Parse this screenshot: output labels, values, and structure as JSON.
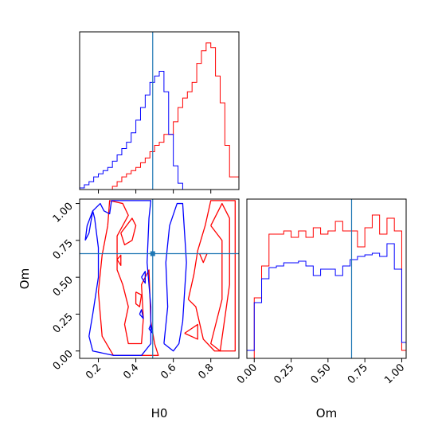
{
  "colors": {
    "series_red": "#ff0000",
    "series_blue": "#0000ff",
    "truth": "#1f77b4",
    "frame": "#000000",
    "background": "#ffffff"
  },
  "chart_data": [
    {
      "type": "histogram",
      "panel": "H0 marginal (top-left)",
      "x_range": [
        0.1,
        0.95
      ],
      "bins": [
        0.1,
        0.125,
        0.15,
        0.175,
        0.2,
        0.225,
        0.25,
        0.275,
        0.3,
        0.325,
        0.35,
        0.375,
        0.4,
        0.425,
        0.45,
        0.475,
        0.5,
        0.525,
        0.55,
        0.575,
        0.6,
        0.625,
        0.65,
        0.675,
        0.7,
        0.725,
        0.75,
        0.775,
        0.8,
        0.825,
        0.85,
        0.875,
        0.9,
        0.925,
        0.95
      ],
      "y_ticks_shown": false,
      "truth_value": 0.49,
      "series": [
        {
          "color": "#ff0000",
          "counts": [
            0,
            0,
            0,
            0,
            0,
            0,
            0,
            0.02,
            0.05,
            0.08,
            0.1,
            0.12,
            0.14,
            0.17,
            0.2,
            0.24,
            0.28,
            0.3,
            0.35,
            0.35,
            0.43,
            0.52,
            0.58,
            0.62,
            0.68,
            0.8,
            0.88,
            0.93,
            0.9,
            0.72,
            0.55,
            0.28,
            0.08,
            0.08
          ]
        },
        {
          "color": "#0000ff",
          "counts": [
            0.01,
            0.03,
            0.05,
            0.08,
            0.1,
            0.12,
            0.14,
            0.18,
            0.22,
            0.26,
            0.3,
            0.36,
            0.44,
            0.52,
            0.6,
            0.68,
            0.72,
            0.75,
            0.62,
            0.35,
            0.15,
            0.04,
            0,
            0,
            0,
            0,
            0,
            0,
            0,
            0,
            0,
            0,
            0,
            0
          ]
        }
      ]
    },
    {
      "type": "contour",
      "panel": "H0 vs Om (bottom-left)",
      "xlabel": "H0",
      "ylabel": "Om",
      "x_range": [
        0.1,
        0.95
      ],
      "y_range": [
        -0.05,
        1.03
      ],
      "x_ticks": [
        0.2,
        0.4,
        0.6,
        0.8
      ],
      "y_ticks": [
        0.0,
        0.25,
        0.5,
        0.75,
        1.0
      ],
      "x_tick_labels": [
        "0.2",
        "0.4",
        "0.6",
        "0.8"
      ],
      "y_tick_labels": [
        "0.00",
        "0.25",
        "0.50",
        "0.75",
        "1.00"
      ],
      "truth_point": {
        "H0": 0.49,
        "Om": 0.66
      },
      "series": [
        {
          "color": "#ff0000",
          "contours": [
            [
              [
                0.25,
                0.85
              ],
              [
                0.26,
                1.02
              ],
              [
                0.33,
                1.0
              ],
              [
                0.36,
                0.92
              ],
              [
                0.3,
                0.78
              ],
              [
                0.3,
                0.55
              ],
              [
                0.33,
                0.45
              ],
              [
                0.36,
                0.3
              ],
              [
                0.34,
                0.18
              ],
              [
                0.36,
                0.05
              ],
              [
                0.43,
                0.05
              ],
              [
                0.44,
                0.22
              ],
              [
                0.43,
                0.45
              ],
              [
                0.47,
                0.55
              ],
              [
                0.48,
                0.2
              ],
              [
                0.5,
                0.05
              ],
              [
                0.52,
                -0.03
              ],
              [
                0.28,
                -0.03
              ],
              [
                0.22,
                0.1
              ],
              [
                0.2,
                0.4
              ],
              [
                0.22,
                0.65
              ],
              [
                0.25,
                0.85
              ]
            ],
            [
              [
                0.32,
                0.8
              ],
              [
                0.38,
                0.9
              ],
              [
                0.4,
                0.85
              ],
              [
                0.38,
                0.75
              ],
              [
                0.34,
                0.72
              ],
              [
                0.32,
                0.8
              ]
            ],
            [
              [
                0.4,
                0.4
              ],
              [
                0.43,
                0.38
              ],
              [
                0.42,
                0.3
              ],
              [
                0.4,
                0.32
              ],
              [
                0.4,
                0.4
              ]
            ],
            [
              [
                0.68,
                0.35
              ],
              [
                0.72,
                0.3
              ],
              [
                0.76,
                0.08
              ],
              [
                0.82,
                0.0
              ],
              [
                0.93,
                0.0
              ],
              [
                0.93,
                1.02
              ],
              [
                0.8,
                1.02
              ],
              [
                0.77,
                0.85
              ],
              [
                0.73,
                0.68
              ],
              [
                0.71,
                0.52
              ],
              [
                0.68,
                0.35
              ]
            ],
            [
              [
                0.8,
                0.85
              ],
              [
                0.86,
                0.75
              ],
              [
                0.86,
                0.35
              ],
              [
                0.8,
                0.05
              ],
              [
                0.85,
                0.0
              ],
              [
                0.9,
                0.45
              ],
              [
                0.9,
                0.9
              ],
              [
                0.86,
                1.0
              ],
              [
                0.8,
                0.85
              ]
            ],
            [
              [
                0.66,
                0.12
              ],
              [
                0.73,
                0.18
              ],
              [
                0.73,
                0.08
              ],
              [
                0.66,
                0.12
              ]
            ],
            [
              [
                0.74,
                0.66
              ],
              [
                0.78,
                0.66
              ],
              [
                0.76,
                0.6
              ],
              [
                0.74,
                0.66
              ]
            ],
            [
              [
                0.3,
                0.62
              ],
              [
                0.32,
                0.65
              ],
              [
                0.32,
                0.58
              ],
              [
                0.3,
                0.62
              ]
            ]
          ]
        },
        {
          "color": "#0000ff",
          "contours": [
            [
              [
                0.13,
                0.75
              ],
              [
                0.14,
                0.85
              ],
              [
                0.17,
                0.95
              ],
              [
                0.18,
                0.9
              ],
              [
                0.2,
                0.7
              ],
              [
                0.2,
                0.5
              ],
              [
                0.17,
                0.25
              ],
              [
                0.15,
                0.1
              ],
              [
                0.17,
                0.0
              ],
              [
                0.28,
                -0.03
              ],
              [
                0.43,
                -0.03
              ],
              [
                0.48,
                0.05
              ],
              [
                0.48,
                0.3
              ],
              [
                0.46,
                0.6
              ],
              [
                0.47,
                0.9
              ],
              [
                0.48,
                1.02
              ],
              [
                0.27,
                1.02
              ],
              [
                0.26,
                0.93
              ],
              [
                0.23,
                0.95
              ],
              [
                0.21,
                1.0
              ],
              [
                0.17,
                0.95
              ],
              [
                0.15,
                0.8
              ],
              [
                0.13,
                0.75
              ]
            ],
            [
              [
                0.55,
                0.05
              ],
              [
                0.57,
                0.3
              ],
              [
                0.56,
                0.6
              ],
              [
                0.58,
                0.85
              ],
              [
                0.62,
                1.0
              ],
              [
                0.65,
                1.0
              ],
              [
                0.66,
                0.8
              ],
              [
                0.67,
                0.6
              ],
              [
                0.66,
                0.4
              ],
              [
                0.65,
                0.2
              ],
              [
                0.63,
                0.05
              ],
              [
                0.6,
                0.0
              ],
              [
                0.55,
                0.05
              ]
            ],
            [
              [
                0.43,
                0.5
              ],
              [
                0.45,
                0.54
              ],
              [
                0.45,
                0.46
              ],
              [
                0.43,
                0.5
              ]
            ],
            [
              [
                0.42,
                0.25
              ],
              [
                0.43,
                0.28
              ],
              [
                0.44,
                0.22
              ],
              [
                0.42,
                0.25
              ]
            ],
            [
              [
                0.47,
                0.15
              ],
              [
                0.48,
                0.18
              ],
              [
                0.49,
                0.12
              ],
              [
                0.47,
                0.15
              ]
            ]
          ]
        }
      ]
    },
    {
      "type": "histogram",
      "panel": "Om marginal (bottom-right)",
      "xlabel": "Om",
      "x_range": [
        -0.05,
        1.03
      ],
      "x_ticks": [
        0.0,
        0.25,
        0.5,
        0.75,
        1.0
      ],
      "x_tick_labels": [
        "0.00",
        "0.25",
        "0.50",
        "0.75",
        "1.00"
      ],
      "y_ticks_shown": false,
      "bins": [
        -0.05,
        0.0,
        0.05,
        0.1,
        0.15,
        0.2,
        0.25,
        0.3,
        0.35,
        0.4,
        0.45,
        0.5,
        0.55,
        0.6,
        0.65,
        0.7,
        0.75,
        0.8,
        0.85,
        0.9,
        0.95,
        1.0,
        1.03
      ],
      "truth_value": 0.66,
      "series": [
        {
          "color": "#ff0000",
          "counts": [
            0,
            0.38,
            0.58,
            0.78,
            0.78,
            0.8,
            0.76,
            0.8,
            0.76,
            0.82,
            0.78,
            0.8,
            0.86,
            0.8,
            0.8,
            0.7,
            0.82,
            0.9,
            0.78,
            0.88,
            0.8,
            0.05
          ]
        },
        {
          "color": "#0000ff",
          "counts": [
            0.05,
            0.35,
            0.5,
            0.57,
            0.58,
            0.6,
            0.6,
            0.61,
            0.58,
            0.52,
            0.56,
            0.56,
            0.52,
            0.58,
            0.62,
            0.64,
            0.65,
            0.66,
            0.64,
            0.72,
            0.56,
            0.1
          ]
        }
      ]
    }
  ]
}
